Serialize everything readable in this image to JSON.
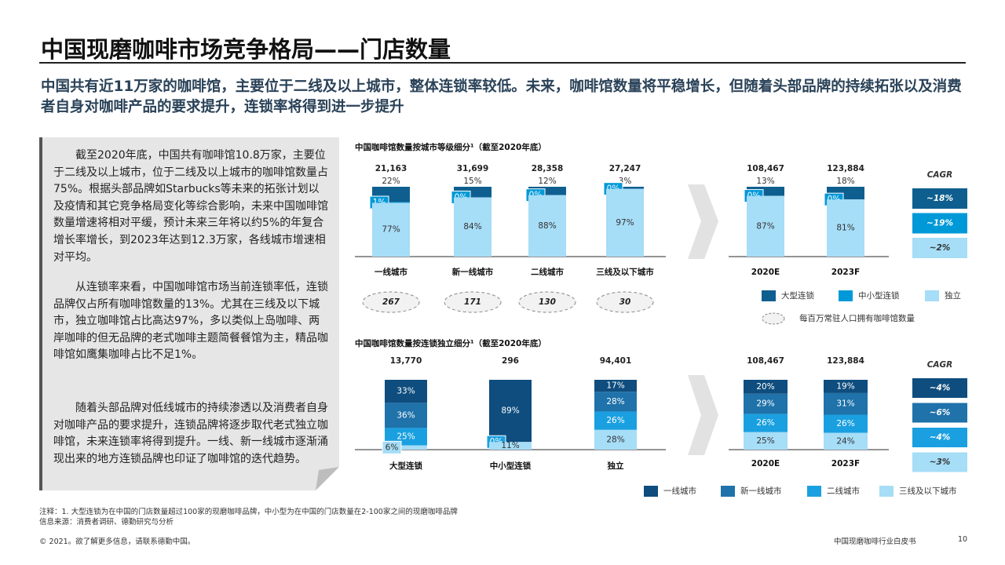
{
  "header": {
    "title": "中国现磨咖啡市场竞争格局——门店数量",
    "subtitle": "中国共有近11万家的咖啡馆，主要位于二线及以上城市，整体连锁率较低。未来，咖啡馆数量将平稳增长，但随着头部品牌的持续拓张以及消费者自身对咖啡产品的要求提升，连锁率将得到进一步提升"
  },
  "panel": {
    "paragraphs": [
      "截至2020年底，中国共有咖啡馆10.8万家，主要位于二线及以上城市，位于二线及以上城市的咖啡馆数量占75%。根据头部品牌如Starbucks等未来的拓张计划以及疫情和其它竞争格局变化等综合影响，未来中国咖啡馆数量增速将相对平缓，预计未来三年将以约5%的年复合增长率增长，到2023年达到12.3万家，各线城市增速相对平均。",
      "从连锁率来看，中国咖啡馆市场当前连锁率低，连锁品牌仅占所有咖啡馆数量的13%。尤其在三线及以下城市，独立咖啡馆占比高达97%，多以类似上岛咖啡、两岸咖啡的但无品牌的老式咖啡主题简餐餐馆为主，精品咖啡馆如鹰集咖啡占比不足1%。",
      "随着头部品牌对低线城市的持续渗透以及消费者自身对咖啡产品的要求提升，连锁品牌将逐步取代老式独立咖啡馆，未来连锁率将得到提升。一线、新一线城市逐渐涌现出来的地方连锁品牌也印证了咖啡馆的迭代趋势。"
    ]
  },
  "chart_data": [
    {
      "type": "bar",
      "title": "中国咖啡馆数量按城市等级细分¹（截至2020年底）",
      "categories": [
        "一线城市",
        "新一线城市",
        "二线城市",
        "三线及以下城市"
      ],
      "totals": {
        "values": [
          21163,
          31699,
          28358,
          27247
        ],
        "value_labels": [
          "21,163",
          "31,699",
          "28,358",
          "27,247"
        ]
      },
      "series": [
        {
          "name": "大型连锁",
          "color": "#0e5f8f",
          "values": [
            22,
            15,
            12,
            3
          ],
          "value_labels": [
            "22%",
            "15%",
            "12%",
            "3%"
          ]
        },
        {
          "name": "中小型连锁",
          "color": "#0099d8",
          "values": [
            1,
            0,
            0,
            0
          ],
          "value_labels": [
            "1%",
            "0%",
            "0%",
            "0%"
          ]
        },
        {
          "name": "独立",
          "color": "#a6ddf7",
          "values": [
            77,
            84,
            88,
            97
          ],
          "value_labels": [
            "77%",
            "84%",
            "88%",
            "97%"
          ]
        }
      ],
      "density": {
        "title": "每百万常驻人口拥有咖啡馆数量",
        "values": [
          267,
          171,
          130,
          30
        ]
      }
    },
    {
      "type": "bar",
      "categories": [
        "2020E",
        "2023F"
      ],
      "totals": {
        "values": [
          108467,
          123884
        ],
        "value_labels": [
          "108,467",
          "123,884"
        ]
      },
      "series": [
        {
          "color": "#0e5f8f",
          "values": [
            13,
            18
          ],
          "value_labels": [
            "13%",
            "18%"
          ]
        },
        {
          "color": "#0099d8",
          "values": [
            0,
            0
          ],
          "value_labels": [
            "0%",
            "0%"
          ]
        },
        {
          "color": "#a6ddf7",
          "values": [
            87,
            81
          ],
          "value_labels": [
            "87%",
            "81%"
          ]
        }
      ],
      "cagr": {
        "title": "CAGR",
        "values": [
          18,
          19,
          2
        ],
        "value_labels": [
          "~18%",
          "~19%",
          "~2%"
        ]
      }
    },
    {
      "type": "bar",
      "title": "中国咖啡馆数量按连锁独立细分¹（截至2020年底）",
      "categories": [
        "大型连锁",
        "中小型连锁",
        "独立"
      ],
      "totals": {
        "values": [
          13770,
          296,
          94401
        ],
        "value_labels": [
          "13,770",
          "296",
          "94,401"
        ]
      },
      "series": [
        {
          "name": "一线城市",
          "color": "#0e4d7e",
          "values": [
            33,
            89,
            17
          ],
          "value_labels": [
            "33%",
            "89%",
            "17%"
          ]
        },
        {
          "name": "新一线城市",
          "color": "#1f72aa",
          "values": [
            36,
            null,
            28
          ],
          "value_labels": [
            "36%",
            null,
            "28%"
          ]
        },
        {
          "name": "二线城市",
          "color": "#1aa0e0",
          "values": [
            25,
            0,
            26
          ],
          "value_labels": [
            "25%",
            "0%",
            "26%"
          ]
        },
        {
          "name": "三线及以下城市",
          "color": "#a6ddf7",
          "values": [
            6,
            11,
            28
          ],
          "value_labels": [
            "6%",
            "11%",
            "28%"
          ]
        }
      ]
    },
    {
      "type": "bar",
      "categories": [
        "2020E",
        "2023F"
      ],
      "totals": {
        "values": [
          108467,
          123884
        ],
        "value_labels": [
          "108,467",
          "123,884"
        ]
      },
      "series": [
        {
          "color": "#0e4d7e",
          "values": [
            20,
            19
          ],
          "value_labels": [
            "20%",
            "19%"
          ]
        },
        {
          "color": "#1f72aa",
          "values": [
            29,
            31
          ],
          "value_labels": [
            "29%",
            "31%"
          ]
        },
        {
          "color": "#1aa0e0",
          "values": [
            26,
            26
          ],
          "value_labels": [
            "26%",
            "26%"
          ]
        },
        {
          "color": "#a6ddf7",
          "values": [
            25,
            24
          ],
          "value_labels": [
            "25%",
            "24%"
          ]
        }
      ],
      "cagr": {
        "title": "CAGR",
        "values": [
          4,
          6,
          4,
          3
        ],
        "value_labels": [
          "~4%",
          "~6%",
          "~4%",
          "~3%"
        ]
      }
    }
  ],
  "notes": [
    "注释：1. 大型连锁为在中国的门店数量超过100家的现磨咖啡品牌，中小型为在中国的门店数量在2-100家之间的现磨咖啡品牌",
    "信息来源：消费者调研、德勤研究与分析"
  ],
  "footer": {
    "copyright": "© 2021。欲了解更多信息，请联系德勤中国。",
    "publication": "中国现磨咖啡行业白皮书",
    "page": "10"
  }
}
